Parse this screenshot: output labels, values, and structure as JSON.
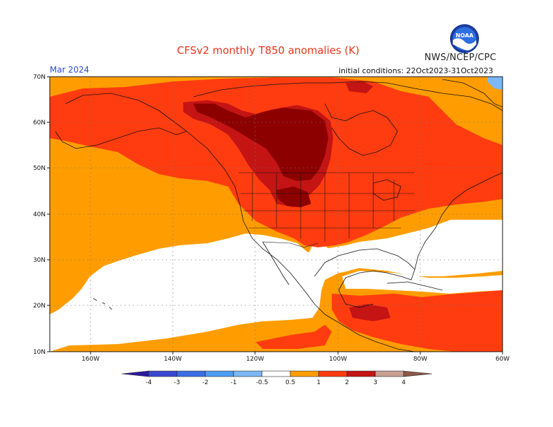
{
  "title": "CFSv2 monthly T850 anomalies (K)",
  "agency": "NWS/NCEP/CPC",
  "logo_text": "NOAA",
  "valid_month": "Mar 2024",
  "initial_conditions": "initial conditions: 22Oct2023-31Oct2023",
  "map": {
    "region": "North America",
    "lon_range": [
      -170,
      -60
    ],
    "lat_range": [
      10,
      70
    ],
    "lat_labels": [
      "70N",
      "60N",
      "50N",
      "40N",
      "30N",
      "20N",
      "10N"
    ],
    "lon_labels": [
      "160W",
      "140W",
      "120W",
      "100W",
      "80W",
      "60W"
    ]
  },
  "legend": {
    "levels": [
      "-4",
      "-3",
      "-2",
      "-1",
      "-0.5",
      "0.5",
      "1",
      "2",
      "3",
      "4"
    ],
    "colors": [
      "#2e1aa0",
      "#3a48d0",
      "#3c6ee6",
      "#4c9cf2",
      "#7cb8f6",
      "#ffffff",
      "#ff9d00",
      "#ff3c10",
      "#c41414",
      "#8c0000",
      "#c8a092",
      "#8c5848"
    ]
  }
}
